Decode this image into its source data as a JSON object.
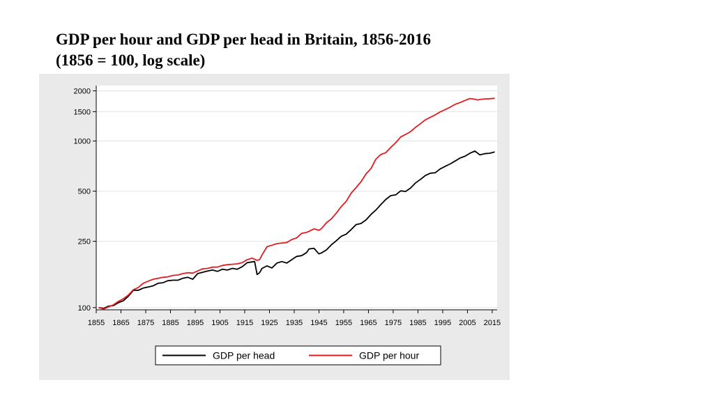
{
  "title": {
    "line1": "GDP per hour and GDP per head in Britain, 1856-2016",
    "line2": "(1856 = 100, log scale)"
  },
  "chart_data": {
    "type": "line",
    "title": "GDP per hour and GDP per head in Britain, 1856-2016 (1856 = 100, log scale)",
    "xlabel": "",
    "ylabel": "",
    "yscale": "log",
    "xlim": [
      1855,
      2017
    ],
    "ylim": [
      97,
      2150
    ],
    "x_ticks": [
      1855,
      1865,
      1875,
      1885,
      1895,
      1905,
      1915,
      1925,
      1935,
      1945,
      1955,
      1965,
      1975,
      1985,
      1995,
      2005,
      2015
    ],
    "y_ticks": [
      100,
      250,
      500,
      1000,
      1500,
      2000
    ],
    "grid": "horizontal",
    "legend_position": "bottom",
    "series": [
      {
        "name": "GDP per head",
        "color": "#000000",
        "x": [
          1856,
          1858,
          1860,
          1862,
          1864,
          1866,
          1868,
          1870,
          1872,
          1874,
          1876,
          1878,
          1880,
          1882,
          1884,
          1886,
          1888,
          1890,
          1892,
          1894,
          1896,
          1898,
          1900,
          1902,
          1904,
          1906,
          1908,
          1910,
          1912,
          1914,
          1916,
          1918,
          1919,
          1920,
          1921,
          1922,
          1924,
          1926,
          1928,
          1930,
          1932,
          1934,
          1936,
          1938,
          1940,
          1941,
          1943,
          1945,
          1946,
          1948,
          1950,
          1952,
          1954,
          1956,
          1958,
          1960,
          1962,
          1964,
          1966,
          1968,
          1970,
          1972,
          1974,
          1976,
          1978,
          1980,
          1982,
          1984,
          1986,
          1988,
          1990,
          1992,
          1994,
          1996,
          1998,
          2000,
          2002,
          2004,
          2006,
          2008,
          2009,
          2010,
          2012,
          2014,
          2016
        ],
        "values": [
          100,
          99,
          102,
          103,
          107,
          110,
          117,
          127,
          127,
          131,
          133,
          135,
          140,
          141,
          145,
          146,
          146,
          150,
          152,
          148,
          160,
          163,
          166,
          168,
          165,
          170,
          168,
          172,
          170,
          176,
          186,
          188,
          189,
          158,
          162,
          172,
          178,
          173,
          185,
          189,
          185,
          194,
          203,
          205,
          214,
          225,
          227,
          210,
          213,
          222,
          238,
          252,
          268,
          276,
          294,
          315,
          320,
          336,
          362,
          385,
          415,
          446,
          470,
          475,
          502,
          498,
          522,
          560,
          588,
          621,
          641,
          645,
          680,
          705,
          728,
          758,
          790,
          810,
          845,
          870,
          848,
          825,
          840,
          845,
          860
        ]
      },
      {
        "name": "GDP per hour",
        "color": "#e41a1c",
        "x": [
          1856,
          1858,
          1860,
          1862,
          1864,
          1866,
          1868,
          1870,
          1872,
          1874,
          1876,
          1878,
          1880,
          1882,
          1884,
          1886,
          1888,
          1890,
          1892,
          1894,
          1896,
          1898,
          1900,
          1902,
          1904,
          1906,
          1908,
          1910,
          1912,
          1914,
          1916,
          1918,
          1920,
          1921,
          1922,
          1924,
          1926,
          1928,
          1930,
          1932,
          1934,
          1936,
          1938,
          1940,
          1941,
          1943,
          1945,
          1946,
          1948,
          1950,
          1952,
          1954,
          1956,
          1958,
          1960,
          1962,
          1964,
          1966,
          1968,
          1970,
          1972,
          1974,
          1976,
          1978,
          1980,
          1982,
          1984,
          1986,
          1988,
          1990,
          1992,
          1994,
          1996,
          1998,
          2000,
          2002,
          2004,
          2006,
          2008,
          2009,
          2010,
          2012,
          2014,
          2016
        ],
        "values": [
          100,
          98,
          101,
          104,
          109,
          113,
          119,
          128,
          132,
          140,
          144,
          148,
          150,
          152,
          153,
          156,
          157,
          160,
          162,
          161,
          166,
          171,
          172,
          175,
          175,
          179,
          181,
          182,
          183,
          186,
          194,
          198,
          192,
          194,
          207,
          232,
          237,
          242,
          244,
          246,
          256,
          262,
          279,
          283,
          287,
          297,
          291,
          298,
          323,
          341,
          369,
          404,
          434,
          486,
          525,
          570,
          634,
          683,
          778,
          830,
          851,
          916,
          977,
          1058,
          1095,
          1138,
          1208,
          1270,
          1341,
          1389,
          1437,
          1496,
          1544,
          1597,
          1660,
          1701,
          1751,
          1800,
          1782,
          1762,
          1775,
          1789,
          1794,
          1805
        ]
      }
    ]
  },
  "legend": {
    "items": [
      {
        "label": "GDP per head",
        "color": "#000000"
      },
      {
        "label": "GDP per hour",
        "color": "#e41a1c"
      }
    ]
  }
}
